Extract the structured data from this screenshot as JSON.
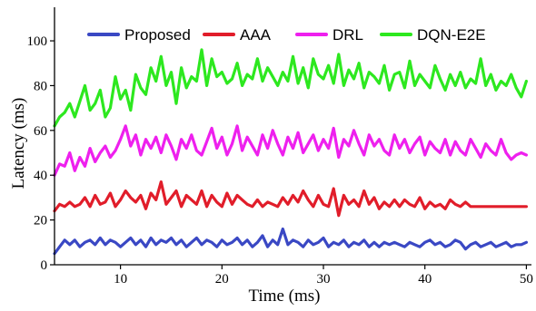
{
  "chart_data": {
    "type": "line",
    "xlabel": "Time (ms)",
    "ylabel": "Latency (ms)",
    "xlim": [
      3.5,
      50.5
    ],
    "ylim": [
      0,
      115
    ],
    "x_ticks": [
      10,
      20,
      30,
      40,
      50
    ],
    "y_ticks": [
      0,
      20,
      40,
      60,
      80,
      100
    ],
    "grid": false,
    "legend_position": "top",
    "x": [
      3.5,
      4,
      4.5,
      5,
      5.5,
      6,
      6.5,
      7,
      7.5,
      8,
      8.5,
      9,
      9.5,
      10,
      10.5,
      11,
      11.5,
      12,
      12.5,
      13,
      13.5,
      14,
      14.5,
      15,
      15.5,
      16,
      16.5,
      17,
      17.5,
      18,
      18.5,
      19,
      19.5,
      20,
      20.5,
      21,
      21.5,
      22,
      22.5,
      23,
      23.5,
      24,
      24.5,
      25,
      25.5,
      26,
      26.5,
      27,
      27.5,
      28,
      28.5,
      29,
      29.5,
      30,
      30.5,
      31,
      31.5,
      32,
      32.5,
      33,
      33.5,
      34,
      34.5,
      35,
      35.5,
      36,
      36.5,
      37,
      37.5,
      38,
      38.5,
      39,
      39.5,
      40,
      40.5,
      41,
      41.5,
      42,
      42.5,
      43,
      43.5,
      44,
      44.5,
      45,
      45.5,
      46,
      46.5,
      47,
      47.5,
      48,
      48.5,
      49,
      49.5,
      50
    ],
    "series": [
      {
        "name": "Proposed",
        "color": "#3a48c4",
        "values": [
          5,
          8,
          11,
          9,
          11,
          8,
          10,
          11,
          9,
          12,
          9,
          11,
          10,
          8,
          10,
          12,
          9,
          11,
          8,
          12,
          9,
          11,
          10,
          12,
          9,
          11,
          8,
          10,
          12,
          9,
          11,
          10,
          8,
          11,
          9,
          10,
          12,
          9,
          11,
          8,
          10,
          13,
          8,
          11,
          9,
          16,
          9,
          11,
          10,
          8,
          11,
          9,
          10,
          12,
          8,
          10,
          9,
          11,
          8,
          10,
          9,
          11,
          8,
          10,
          8,
          10,
          9,
          10,
          9,
          8,
          10,
          9,
          8,
          10,
          11,
          9,
          10,
          8,
          9,
          11,
          10,
          7,
          9,
          10,
          8,
          9,
          10,
          8,
          9,
          10,
          8,
          9,
          9,
          10
        ]
      },
      {
        "name": "AAA",
        "color": "#e11d2a",
        "values": [
          24,
          27,
          26,
          28,
          26,
          27,
          30,
          26,
          31,
          27,
          28,
          32,
          26,
          29,
          33,
          30,
          28,
          31,
          25,
          32,
          29,
          37,
          27,
          30,
          33,
          26,
          31,
          29,
          27,
          33,
          26,
          31,
          28,
          26,
          32,
          27,
          31,
          29,
          27,
          26,
          29,
          26,
          28,
          27,
          26,
          30,
          27,
          31,
          28,
          33,
          29,
          26,
          31,
          27,
          26,
          34,
          22,
          31,
          27,
          29,
          26,
          33,
          27,
          30,
          25,
          28,
          26,
          29,
          26,
          29,
          27,
          26,
          30,
          25,
          28,
          26,
          27,
          25,
          29,
          27,
          26,
          28,
          26,
          26,
          26,
          26,
          26,
          26,
          26,
          26,
          26,
          26,
          26,
          26
        ]
      },
      {
        "name": "DRL",
        "color": "#ee20ee",
        "values": [
          40,
          45,
          44,
          50,
          42,
          48,
          44,
          52,
          46,
          50,
          53,
          48,
          51,
          56,
          62,
          53,
          58,
          49,
          56,
          52,
          57,
          50,
          58,
          53,
          47,
          56,
          52,
          58,
          51,
          49,
          55,
          61,
          52,
          57,
          49,
          54,
          62,
          51,
          57,
          53,
          49,
          58,
          52,
          60,
          54,
          49,
          57,
          52,
          59,
          50,
          54,
          58,
          51,
          56,
          52,
          61,
          48,
          56,
          53,
          60,
          54,
          49,
          58,
          53,
          56,
          51,
          49,
          58,
          52,
          56,
          50,
          54,
          57,
          49,
          55,
          52,
          50,
          56,
          49,
          55,
          51,
          49,
          56,
          52,
          48,
          54,
          51,
          49,
          56,
          50,
          47,
          49,
          50,
          49
        ]
      },
      {
        "name": "DQN-E2E",
        "color": "#2de81f",
        "values": [
          62,
          66,
          68,
          72,
          66,
          73,
          80,
          69,
          72,
          78,
          66,
          70,
          84,
          74,
          78,
          69,
          85,
          79,
          76,
          88,
          82,
          93,
          80,
          86,
          72,
          88,
          79,
          84,
          82,
          96,
          80,
          92,
          84,
          86,
          81,
          83,
          90,
          80,
          85,
          83,
          92,
          82,
          88,
          84,
          80,
          86,
          82,
          93,
          81,
          88,
          79,
          92,
          85,
          83,
          89,
          81,
          94,
          80,
          87,
          83,
          90,
          79,
          86,
          84,
          81,
          89,
          78,
          85,
          86,
          79,
          91,
          80,
          85,
          82,
          79,
          89,
          83,
          78,
          85,
          80,
          86,
          79,
          83,
          81,
          92,
          80,
          85,
          78,
          82,
          80,
          85,
          79,
          75,
          82
        ]
      }
    ]
  }
}
